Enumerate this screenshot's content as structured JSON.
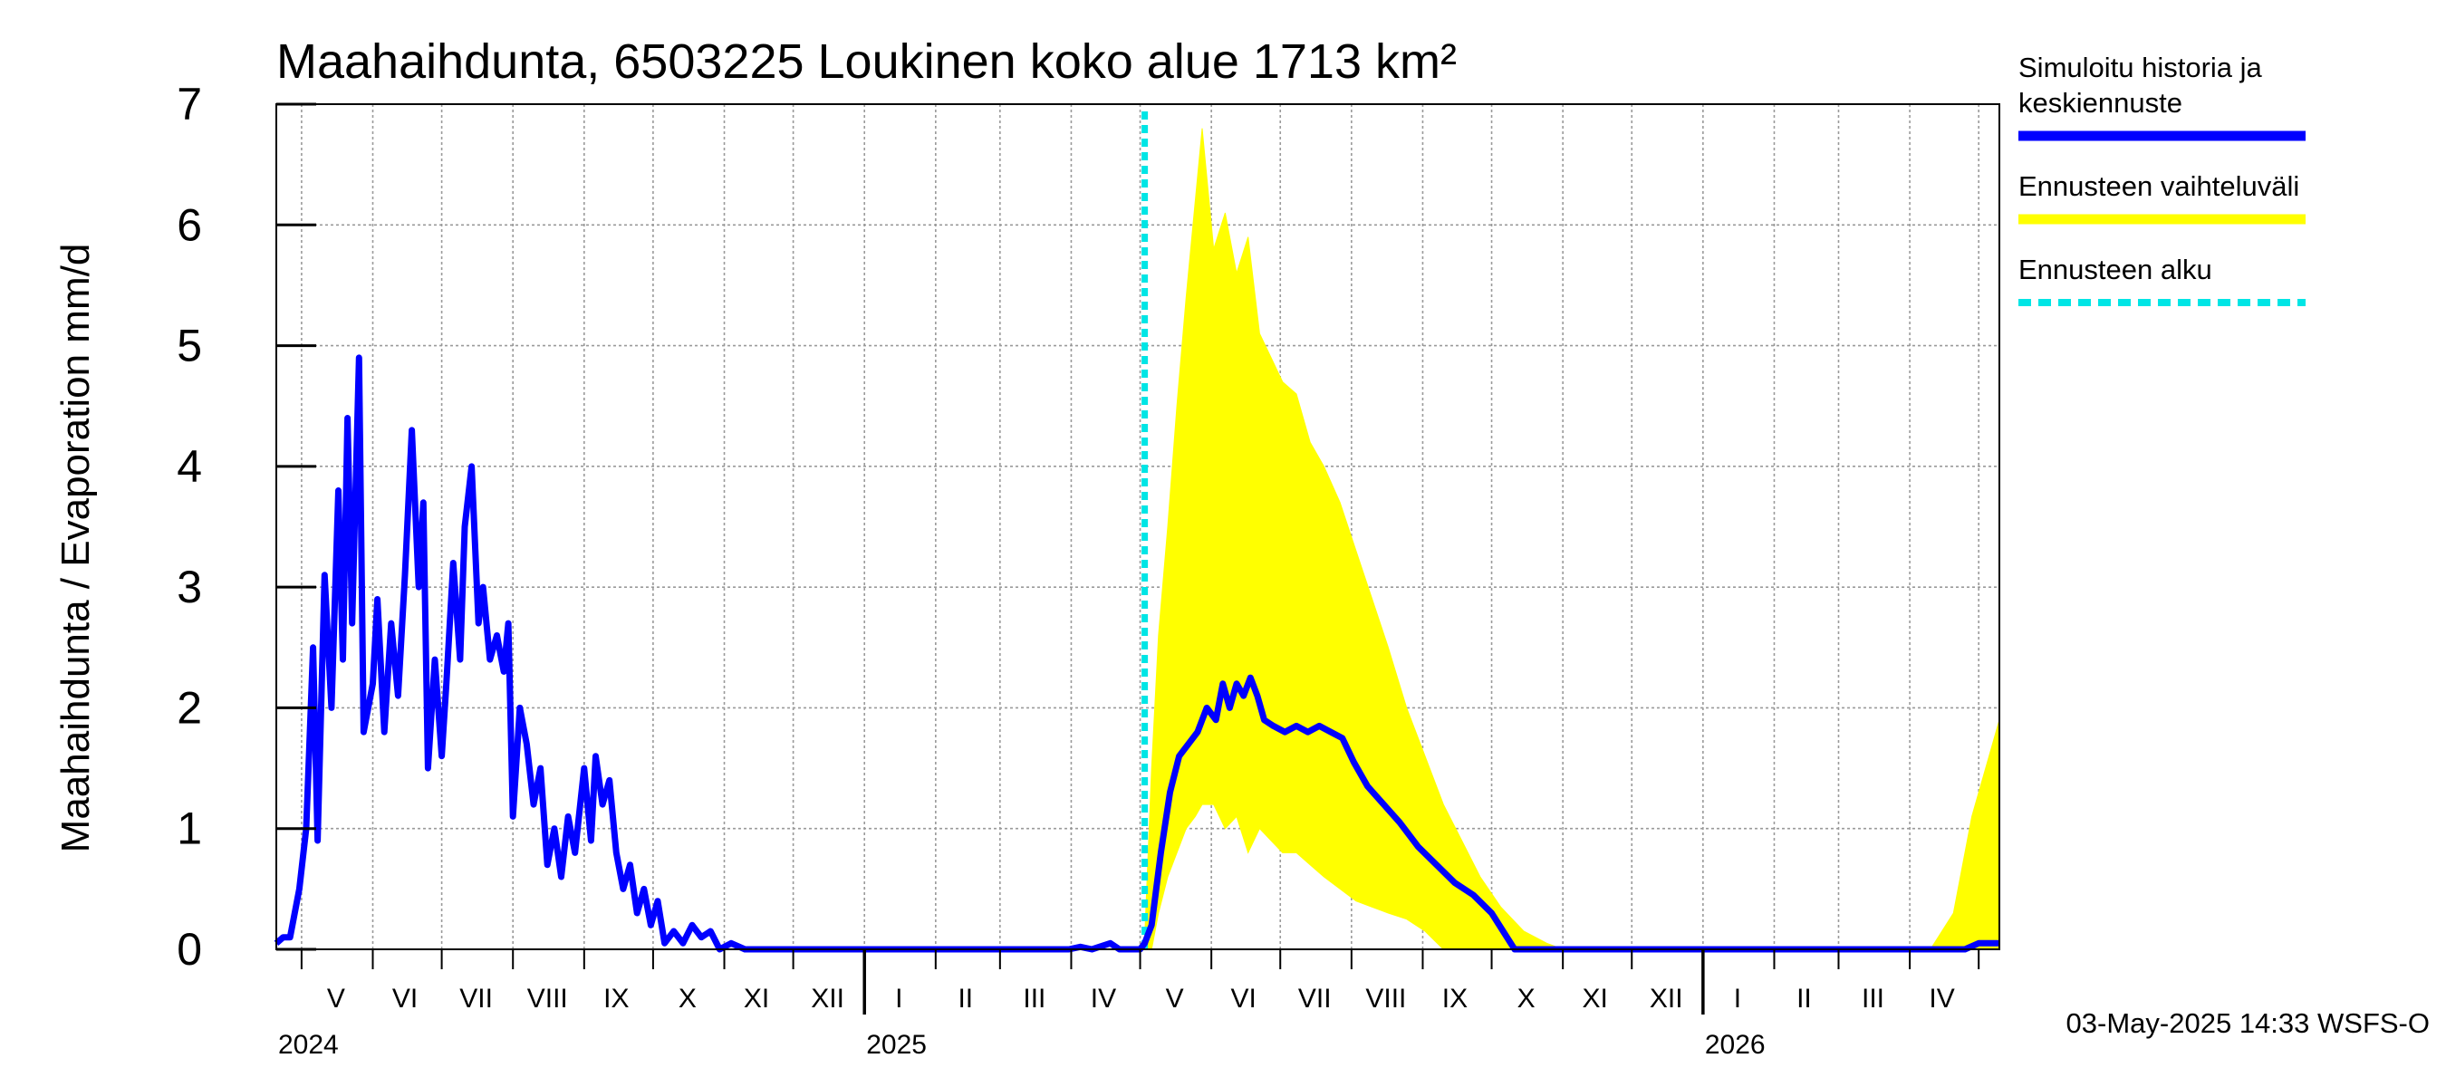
{
  "chart_data": {
    "type": "line",
    "title": "Maahaihdunta, 6503225 Loukinen koko alue 1713 km²",
    "ylabel": "Maahaihdunta / Evaporation   mm/d",
    "ylim": [
      0,
      7
    ],
    "yticks": [
      "0",
      "1",
      "2",
      "3",
      "4",
      "5",
      "6",
      "7"
    ],
    "x_range": [
      "2024-04-20",
      "2026-05-10"
    ],
    "grid": true,
    "legend_position": "right",
    "month_labels": [
      {
        "label": "V",
        "date": "2024-05-16"
      },
      {
        "label": "VI",
        "date": "2024-06-15"
      },
      {
        "label": "VII",
        "date": "2024-07-16"
      },
      {
        "label": "VIII",
        "date": "2024-08-16"
      },
      {
        "label": "IX",
        "date": "2024-09-15"
      },
      {
        "label": "X",
        "date": "2024-10-16"
      },
      {
        "label": "XI",
        "date": "2024-11-15"
      },
      {
        "label": "XII",
        "date": "2024-12-16"
      },
      {
        "label": "I",
        "date": "2025-01-16"
      },
      {
        "label": "II",
        "date": "2025-02-14"
      },
      {
        "label": "III",
        "date": "2025-03-16"
      },
      {
        "label": "IV",
        "date": "2025-04-15"
      },
      {
        "label": "V",
        "date": "2025-05-16"
      },
      {
        "label": "VI",
        "date": "2025-06-15"
      },
      {
        "label": "VII",
        "date": "2025-07-16"
      },
      {
        "label": "VIII",
        "date": "2025-08-16"
      },
      {
        "label": "IX",
        "date": "2025-09-15"
      },
      {
        "label": "X",
        "date": "2025-10-16"
      },
      {
        "label": "XI",
        "date": "2025-11-15"
      },
      {
        "label": "XII",
        "date": "2025-12-16"
      },
      {
        "label": "I",
        "date": "2026-01-16"
      },
      {
        "label": "II",
        "date": "2026-02-14"
      },
      {
        "label": "III",
        "date": "2026-03-16"
      },
      {
        "label": "IV",
        "date": "2026-04-15"
      }
    ],
    "year_labels": [
      {
        "label": "2024",
        "date": "2024-04-20"
      },
      {
        "label": "2025",
        "date": "2025-01-01"
      },
      {
        "label": "2026",
        "date": "2026-01-01"
      }
    ],
    "forecast_start": "2025-05-03",
    "series": [
      {
        "name": "Simuloitu historia ja keskiennuste",
        "color": "#0000ff",
        "points": [
          [
            "2024-04-20",
            0.05
          ],
          [
            "2024-04-23",
            0.1
          ],
          [
            "2024-04-26",
            0.1
          ],
          [
            "2024-04-30",
            0.5
          ],
          [
            "2024-05-03",
            1.0
          ],
          [
            "2024-05-06",
            2.5
          ],
          [
            "2024-05-08",
            0.9
          ],
          [
            "2024-05-11",
            3.1
          ],
          [
            "2024-05-14",
            2.0
          ],
          [
            "2024-05-17",
            3.8
          ],
          [
            "2024-05-19",
            2.4
          ],
          [
            "2024-05-21",
            4.4
          ],
          [
            "2024-05-23",
            2.7
          ],
          [
            "2024-05-26",
            4.9
          ],
          [
            "2024-05-28",
            1.8
          ],
          [
            "2024-06-01",
            2.2
          ],
          [
            "2024-06-03",
            2.9
          ],
          [
            "2024-06-06",
            1.8
          ],
          [
            "2024-06-09",
            2.7
          ],
          [
            "2024-06-12",
            2.1
          ],
          [
            "2024-06-15",
            3.1
          ],
          [
            "2024-06-18",
            4.3
          ],
          [
            "2024-06-21",
            3.0
          ],
          [
            "2024-06-23",
            3.7
          ],
          [
            "2024-06-25",
            1.5
          ],
          [
            "2024-06-28",
            2.4
          ],
          [
            "2024-07-01",
            1.6
          ],
          [
            "2024-07-03",
            2.2
          ],
          [
            "2024-07-06",
            3.2
          ],
          [
            "2024-07-09",
            2.4
          ],
          [
            "2024-07-11",
            3.5
          ],
          [
            "2024-07-14",
            4.0
          ],
          [
            "2024-07-17",
            2.7
          ],
          [
            "2024-07-19",
            3.0
          ],
          [
            "2024-07-22",
            2.4
          ],
          [
            "2024-07-25",
            2.6
          ],
          [
            "2024-07-28",
            2.3
          ],
          [
            "2024-07-30",
            2.7
          ],
          [
            "2024-08-01",
            1.1
          ],
          [
            "2024-08-04",
            2.0
          ],
          [
            "2024-08-07",
            1.7
          ],
          [
            "2024-08-10",
            1.2
          ],
          [
            "2024-08-13",
            1.5
          ],
          [
            "2024-08-16",
            0.7
          ],
          [
            "2024-08-19",
            1.0
          ],
          [
            "2024-08-22",
            0.6
          ],
          [
            "2024-08-25",
            1.1
          ],
          [
            "2024-08-28",
            0.8
          ],
          [
            "2024-09-01",
            1.5
          ],
          [
            "2024-09-04",
            0.9
          ],
          [
            "2024-09-06",
            1.6
          ],
          [
            "2024-09-09",
            1.2
          ],
          [
            "2024-09-12",
            1.4
          ],
          [
            "2024-09-15",
            0.8
          ],
          [
            "2024-09-18",
            0.5
          ],
          [
            "2024-09-21",
            0.7
          ],
          [
            "2024-09-24",
            0.3
          ],
          [
            "2024-09-27",
            0.5
          ],
          [
            "2024-09-30",
            0.2
          ],
          [
            "2024-10-03",
            0.4
          ],
          [
            "2024-10-06",
            0.05
          ],
          [
            "2024-10-10",
            0.15
          ],
          [
            "2024-10-14",
            0.05
          ],
          [
            "2024-10-18",
            0.2
          ],
          [
            "2024-10-22",
            0.1
          ],
          [
            "2024-10-26",
            0.15
          ],
          [
            "2024-10-30",
            0.0
          ],
          [
            "2024-11-04",
            0.05
          ],
          [
            "2024-11-10",
            0.0
          ],
          [
            "2024-12-31",
            0.0
          ],
          [
            "2025-03-31",
            0.0
          ],
          [
            "2025-04-05",
            0.02
          ],
          [
            "2025-04-10",
            0.0
          ],
          [
            "2025-04-18",
            0.05
          ],
          [
            "2025-04-22",
            0.0
          ],
          [
            "2025-05-01",
            0.0
          ],
          [
            "2025-05-03",
            0.05
          ],
          [
            "2025-05-06",
            0.2
          ],
          [
            "2025-05-10",
            0.8
          ],
          [
            "2025-05-14",
            1.3
          ],
          [
            "2025-05-18",
            1.6
          ],
          [
            "2025-05-22",
            1.7
          ],
          [
            "2025-05-26",
            1.8
          ],
          [
            "2025-05-30",
            2.0
          ],
          [
            "2025-06-03",
            1.9
          ],
          [
            "2025-06-06",
            2.2
          ],
          [
            "2025-06-09",
            2.0
          ],
          [
            "2025-06-12",
            2.2
          ],
          [
            "2025-06-15",
            2.1
          ],
          [
            "2025-06-18",
            2.25
          ],
          [
            "2025-06-21",
            2.1
          ],
          [
            "2025-06-24",
            1.9
          ],
          [
            "2025-06-28",
            1.85
          ],
          [
            "2025-07-03",
            1.8
          ],
          [
            "2025-07-08",
            1.85
          ],
          [
            "2025-07-13",
            1.8
          ],
          [
            "2025-07-18",
            1.85
          ],
          [
            "2025-07-23",
            1.8
          ],
          [
            "2025-07-28",
            1.75
          ],
          [
            "2025-08-02",
            1.55
          ],
          [
            "2025-08-08",
            1.35
          ],
          [
            "2025-08-15",
            1.2
          ],
          [
            "2025-08-22",
            1.05
          ],
          [
            "2025-08-30",
            0.85
          ],
          [
            "2025-09-07",
            0.7
          ],
          [
            "2025-09-15",
            0.55
          ],
          [
            "2025-09-23",
            0.45
          ],
          [
            "2025-10-01",
            0.3
          ],
          [
            "2025-10-06",
            0.15
          ],
          [
            "2025-10-11",
            0.0
          ],
          [
            "2026-04-25",
            0.0
          ],
          [
            "2026-05-01",
            0.05
          ],
          [
            "2026-05-10",
            0.05
          ]
        ]
      },
      {
        "name": "Ennusteen vaihteluväli",
        "color": "#ffff00",
        "band": [
          [
            "2025-05-03",
            0.0,
            0.1
          ],
          [
            "2025-05-06",
            0.0,
            1.5
          ],
          [
            "2025-05-09",
            0.3,
            2.6
          ],
          [
            "2025-05-13",
            0.6,
            3.5
          ],
          [
            "2025-05-17",
            0.8,
            4.5
          ],
          [
            "2025-05-21",
            1.0,
            5.4
          ],
          [
            "2025-05-25",
            1.1,
            6.2
          ],
          [
            "2025-05-28",
            1.2,
            6.8
          ],
          [
            "2025-06-02",
            1.2,
            5.8
          ],
          [
            "2025-06-07",
            1.0,
            6.1
          ],
          [
            "2025-06-12",
            1.1,
            5.6
          ],
          [
            "2025-06-17",
            0.8,
            5.9
          ],
          [
            "2025-06-22",
            1.0,
            5.1
          ],
          [
            "2025-06-27",
            0.9,
            4.9
          ],
          [
            "2025-07-02",
            0.8,
            4.7
          ],
          [
            "2025-07-08",
            0.8,
            4.6
          ],
          [
            "2025-07-14",
            0.7,
            4.2
          ],
          [
            "2025-07-20",
            0.6,
            4.0
          ],
          [
            "2025-07-27",
            0.5,
            3.7
          ],
          [
            "2025-08-03",
            0.4,
            3.3
          ],
          [
            "2025-08-10",
            0.35,
            2.9
          ],
          [
            "2025-08-17",
            0.3,
            2.5
          ],
          [
            "2025-08-25",
            0.25,
            2.0
          ],
          [
            "2025-09-02",
            0.15,
            1.6
          ],
          [
            "2025-09-10",
            0.0,
            1.2
          ],
          [
            "2025-09-18",
            0.0,
            0.9
          ],
          [
            "2025-09-26",
            0.0,
            0.6
          ],
          [
            "2025-10-05",
            0.0,
            0.35
          ],
          [
            "2025-10-15",
            0.0,
            0.15
          ],
          [
            "2025-10-25",
            0.0,
            0.05
          ],
          [
            "2025-11-01",
            0.0,
            0.0
          ],
          [
            "2026-04-10",
            0.0,
            0.0
          ],
          [
            "2026-04-20",
            0.0,
            0.3
          ],
          [
            "2026-04-28",
            0.0,
            1.1
          ],
          [
            "2026-05-04",
            0.0,
            1.5
          ],
          [
            "2026-05-10",
            0.0,
            1.9
          ]
        ]
      },
      {
        "name": "Ennusteen alku",
        "color": "#00e5e5"
      }
    ]
  },
  "legend": [
    {
      "lines": [
        "Simuloitu historia ja",
        "keskiennuste"
      ],
      "color": "#0000ff",
      "style": "solid"
    },
    {
      "lines": [
        "Ennusteen vaihteluväli"
      ],
      "color": "#ffff00",
      "style": "solid"
    },
    {
      "lines": [
        "Ennusteen alku"
      ],
      "color": "#00e5e5",
      "style": "dashed"
    }
  ],
  "footer": "03-May-2025 14:33 WSFS-O"
}
